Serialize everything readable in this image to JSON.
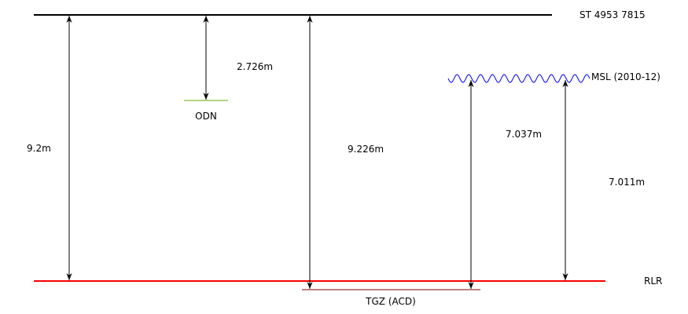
{
  "labels": {
    "top_ref": "ST 4953 7815",
    "odn": "ODN",
    "msl": "MSL (2010-12)",
    "rlr": "RLR",
    "tgz": "TGZ (ACD)"
  },
  "measurements": {
    "top_to_rlr_left": "9.2m",
    "top_to_odn": "2.726m",
    "top_to_tgz": "9.226m",
    "msl_to_tgz": "7.037m",
    "msl_to_rlr": "7.011m"
  },
  "colors": {
    "top_line": "#000000",
    "rlr_line": "#ff0000",
    "odn_line": "#66aa00",
    "msl_wave": "#0000ff",
    "tgz_line": "#800000"
  }
}
